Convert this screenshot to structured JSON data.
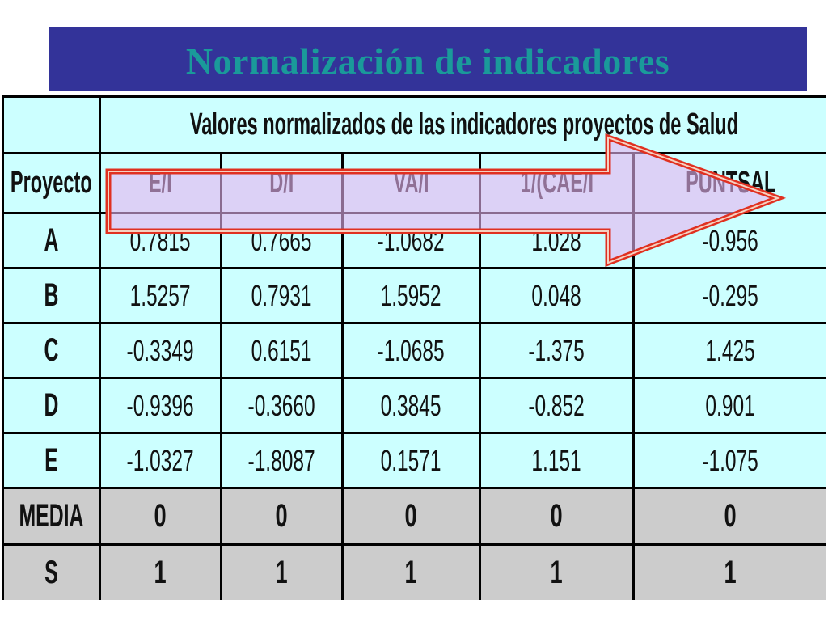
{
  "slide": {
    "title": "Normalización de indicadores"
  },
  "table": {
    "group_header": "Valores normalizados de las indicadores proyectos de Salud",
    "row_header": "Proyecto",
    "columns": [
      "E/I",
      "D/I",
      "VA/I",
      "1/(CAE/I",
      "PUNTSAL"
    ],
    "rows": [
      {
        "label": "A",
        "values": [
          "0.7815",
          "0.7665",
          "-1.0682",
          "1.028",
          "-0.956"
        ]
      },
      {
        "label": "B",
        "values": [
          "1.5257",
          "0.7931",
          "1.5952",
          "0.048",
          "-0.295"
        ]
      },
      {
        "label": "C",
        "values": [
          "-0.3349",
          "0.6151",
          "-1.0685",
          "-1.375",
          "1.425"
        ]
      },
      {
        "label": "D",
        "values": [
          "-0.9396",
          "-0.3660",
          "0.3845",
          "-0.852",
          "0.901"
        ]
      },
      {
        "label": "E",
        "values": [
          "-1.0327",
          "-1.8087",
          "0.1571",
          "1.151",
          "-1.075"
        ]
      }
    ],
    "stats": [
      {
        "label": "MEDIA",
        "values": [
          "0",
          "0",
          "0",
          "0",
          "0"
        ]
      },
      {
        "label": "S",
        "values": [
          "1",
          "1",
          "1",
          "1",
          "1"
        ]
      }
    ]
  },
  "colors": {
    "title_bg": "#333399",
    "title_text": "#1a9a9a",
    "cell_bg": "#ccffff",
    "stat_bg": "#cccccc",
    "arrow_fill": "#e6b3f0",
    "arrow_stroke": "#e03020"
  },
  "icons": {
    "overlay": "right-arrow-icon"
  }
}
